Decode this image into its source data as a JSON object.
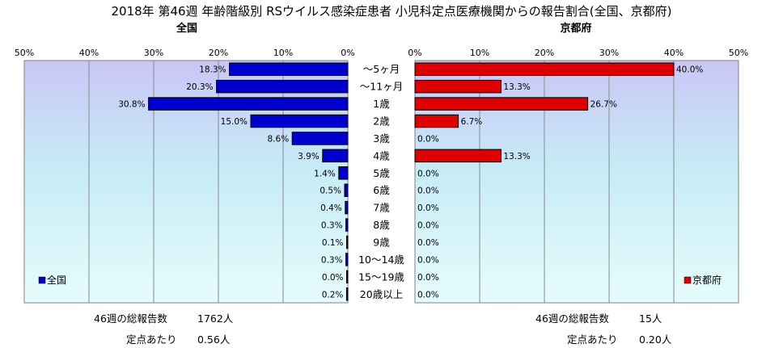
{
  "chart_data": {
    "type": "bar",
    "title": "2018年 第46週 年齢階級別 RSウイルス感染症患者 小児科定点医療機関からの報告割合(全国、京都府)",
    "categories": [
      "～5ヶ月",
      "～11ヶ月",
      "1歳",
      "2歳",
      "3歳",
      "4歳",
      "5歳",
      "6歳",
      "7歳",
      "8歳",
      "9歳",
      "10～14歳",
      "15～19歳",
      "20歳以上"
    ],
    "axis_ticks": [
      "50%",
      "40%",
      "30%",
      "20%",
      "10%",
      "0%"
    ],
    "axis_ticks_right": [
      "0%",
      "10%",
      "20%",
      "30%",
      "40%",
      "50%"
    ],
    "xlim": [
      0,
      50
    ],
    "grid": true,
    "series": [
      {
        "name": "全国",
        "subtitle": "全国",
        "legend": "全国",
        "color": "#0000CC",
        "values": [
          18.3,
          20.3,
          30.8,
          15.0,
          8.6,
          3.9,
          1.4,
          0.5,
          0.4,
          0.3,
          0.1,
          0.3,
          0.0,
          0.2
        ],
        "labels": [
          "18.3%",
          "20.3%",
          "30.8%",
          "15.0%",
          "8.6%",
          "3.9%",
          "1.4%",
          "0.5%",
          "0.4%",
          "0.3%",
          "0.1%",
          "0.3%",
          "0.0%",
          "0.2%"
        ]
      },
      {
        "name": "京都府",
        "subtitle": "京都府",
        "legend": "京都府",
        "color": "#DD0000",
        "values": [
          40.0,
          13.3,
          26.7,
          6.7,
          0.0,
          13.3,
          0.0,
          0.0,
          0.0,
          0.0,
          0.0,
          0.0,
          0.0,
          0.0
        ],
        "labels": [
          "40.0%",
          "13.3%",
          "26.7%",
          "6.7%",
          "0.0%",
          "13.3%",
          "0.0%",
          "0.0%",
          "0.0%",
          "0.0%",
          "0.0%",
          "0.0%",
          "0.0%",
          "0.0%"
        ]
      }
    ]
  },
  "footer": {
    "left": {
      "total_label": "46週の総報告数",
      "total_value": "1762人",
      "per_label": "定点あたり",
      "per_value": "0.56人"
    },
    "right": {
      "total_label": "46週の総報告数",
      "total_value": "15人",
      "per_label": "定点あたり",
      "per_value": "0.20人"
    }
  }
}
